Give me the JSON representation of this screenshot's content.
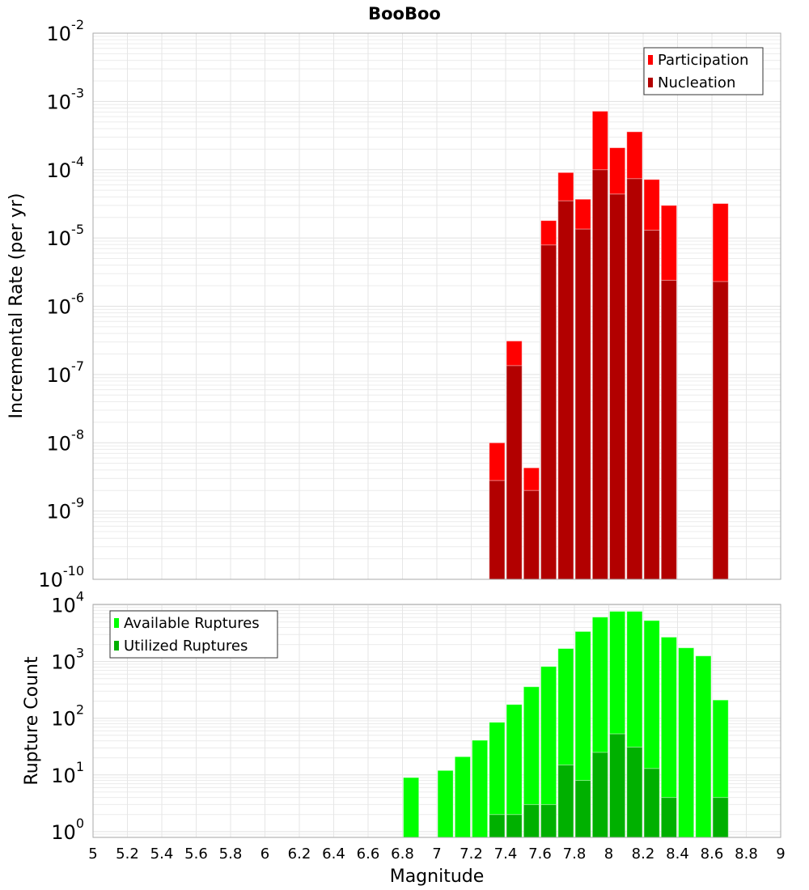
{
  "chart_data": [
    {
      "type": "bar",
      "title": "BooBoo",
      "xlabel": "Magnitude",
      "ylabel": "Incremental Rate (per yr)",
      "yscale": "log",
      "ylim": [
        1e-10,
        0.01
      ],
      "xlim": [
        5,
        9
      ],
      "bin_width": 0.1,
      "legend_position": "top-right",
      "grid": true,
      "series": [
        {
          "name": "Participation",
          "color": "#ff0000",
          "x": [
            7.35,
            7.45,
            7.55,
            7.65,
            7.75,
            7.85,
            7.95,
            8.05,
            8.15,
            8.25,
            8.35,
            8.65
          ],
          "values": [
            1e-08,
            3.1e-07,
            4.3e-09,
            1.8e-05,
            9.1e-05,
            3.7e-05,
            0.00072,
            0.00021,
            0.00036,
            7.2e-05,
            3e-05,
            3.2e-05
          ]
        },
        {
          "name": "Nucleation",
          "color": "#b20000",
          "x": [
            7.35,
            7.45,
            7.55,
            7.65,
            7.75,
            7.85,
            7.95,
            8.05,
            8.15,
            8.25,
            8.35,
            8.65
          ],
          "values": [
            2.8e-09,
            1.35e-07,
            2e-09,
            7.9e-06,
            3.5e-05,
            1.35e-05,
            0.0001,
            4.4e-05,
            7.4e-05,
            1.3e-05,
            2.4e-06,
            2.3e-06
          ]
        }
      ],
      "ytick_exponents": [
        "-10",
        "-9",
        "-8",
        "-7",
        "-6",
        "-5",
        "-4",
        "-3",
        "-2"
      ]
    },
    {
      "type": "bar",
      "xlabel": "Magnitude",
      "ylabel": "Rupture Count",
      "yscale": "log",
      "ylim": [
        0.79,
        10200
      ],
      "xlim": [
        5,
        9
      ],
      "bin_width": 0.1,
      "legend_position": "top-left",
      "grid": true,
      "series": [
        {
          "name": "Available Ruptures",
          "color": "#00ff00",
          "x": [
            6.85,
            7.05,
            7.15,
            7.25,
            7.35,
            7.45,
            7.55,
            7.65,
            7.75,
            7.85,
            7.95,
            8.05,
            8.15,
            8.25,
            8.35,
            8.45,
            8.55,
            8.65
          ],
          "values": [
            9,
            12,
            21,
            41,
            85,
            175,
            360,
            820,
            1700,
            3400,
            6100,
            7700,
            7700,
            5300,
            2700,
            1750,
            1260,
            210
          ]
        },
        {
          "name": "Utilized Ruptures",
          "color": "#00b000",
          "x": [
            7.35,
            7.45,
            7.55,
            7.65,
            7.75,
            7.85,
            7.95,
            8.05,
            8.15,
            8.25,
            8.35,
            8.65
          ],
          "values": [
            2,
            2,
            3,
            3,
            15,
            8,
            25,
            53,
            31,
            13,
            4,
            4
          ]
        }
      ],
      "ytick_exponents": [
        "0",
        "1",
        "2",
        "3",
        "4"
      ]
    }
  ],
  "xtick_labels": [
    "5",
    "5.2",
    "5.4",
    "5.6",
    "5.8",
    "6",
    "6.2",
    "6.4",
    "6.6",
    "6.8",
    "7",
    "7.2",
    "7.4",
    "7.6",
    "7.8",
    "8",
    "8.2",
    "8.4",
    "8.6",
    "8.8",
    "9"
  ],
  "tick_base": "10"
}
